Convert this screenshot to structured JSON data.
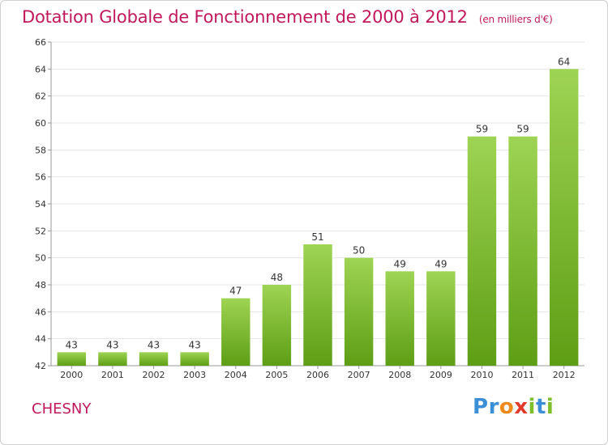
{
  "chart_data": {
    "type": "bar",
    "title": "Dotation Globale de Fonctionnement de 2000 à 2012",
    "subtitle": "(en milliers d'€)",
    "categories": [
      "2000",
      "2001",
      "2002",
      "2003",
      "2004",
      "2005",
      "2006",
      "2007",
      "2008",
      "2009",
      "2010",
      "2011",
      "2012"
    ],
    "values": [
      43,
      43,
      43,
      43,
      47,
      48,
      51,
      50,
      49,
      49,
      59,
      59,
      64
    ],
    "data_labels": [
      "43",
      "43",
      "43",
      "43",
      "47",
      "48",
      "51",
      "50",
      "49",
      "49",
      "59",
      "59",
      "64"
    ],
    "xlabel": "",
    "ylabel": "",
    "ylim": [
      42,
      66
    ],
    "y_ticks": [
      42,
      44,
      46,
      48,
      50,
      52,
      54,
      56,
      58,
      60,
      62,
      64,
      66
    ],
    "y_tick_labels": [
      "42",
      "44",
      "46",
      "48",
      "50",
      "52",
      "54",
      "56",
      "58",
      "60",
      "62",
      "64",
      "66"
    ],
    "grid": true,
    "legend": "none",
    "colors": {
      "bar_top": "#9ed453",
      "bar_bottom": "#5e9e15",
      "grid": "#e6e6e6",
      "title": "#c2185b"
    }
  },
  "footer": {
    "commune": "CHESNY",
    "brand_letters": [
      {
        "char": "P",
        "color": "#3a8fd6"
      },
      {
        "char": "r",
        "color": "#3a8fd6"
      },
      {
        "char": "o",
        "color": "#f08a1c"
      },
      {
        "char": "x",
        "color": "#e23b2a"
      },
      {
        "char": "i",
        "color": "#7cbf2a"
      },
      {
        "char": "t",
        "color": "#3a8fd6"
      },
      {
        "char": "i",
        "color": "#7cbf2a"
      }
    ]
  }
}
